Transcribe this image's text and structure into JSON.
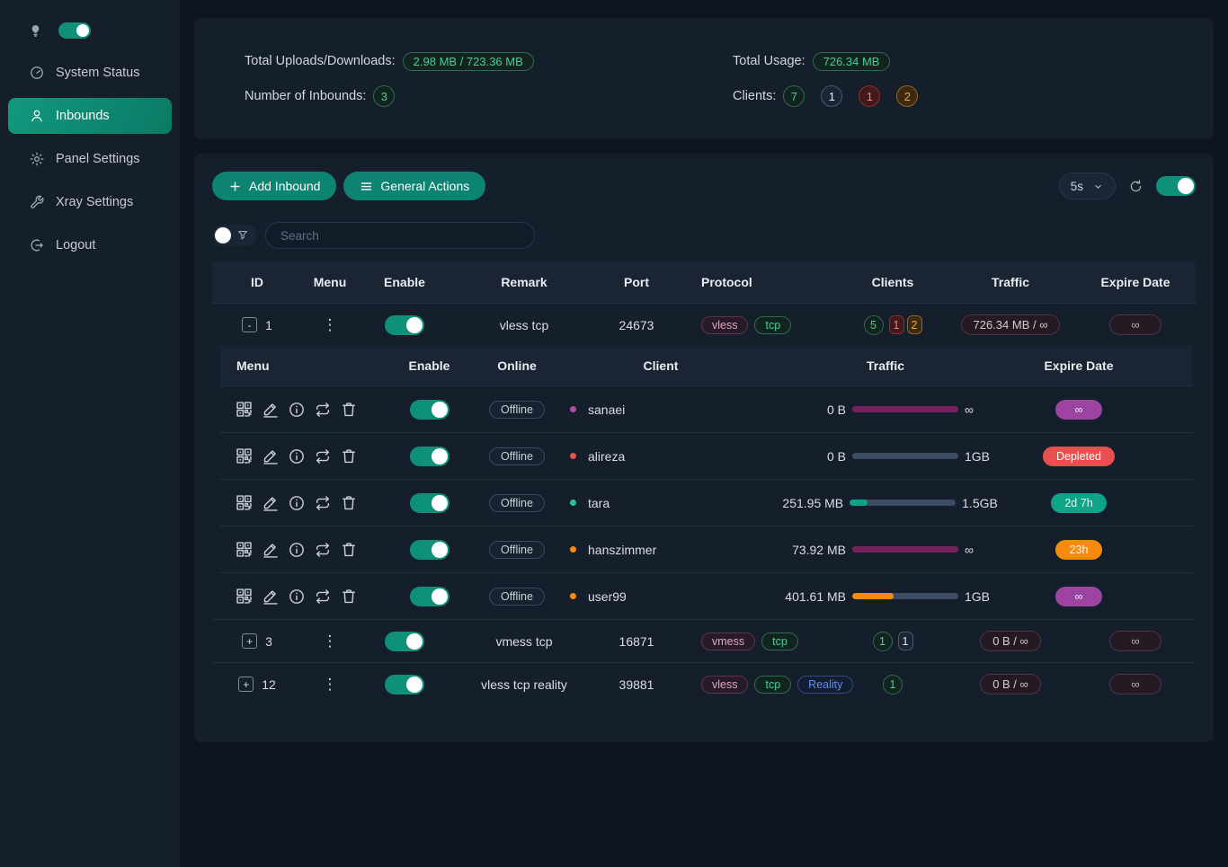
{
  "sidebar": {
    "items": [
      {
        "label": "System Status"
      },
      {
        "label": "Inbounds"
      },
      {
        "label": "Panel Settings"
      },
      {
        "label": "Xray Settings"
      },
      {
        "label": "Logout"
      }
    ]
  },
  "stats": {
    "uploads_label": "Total Uploads/Downloads:",
    "uploads_value": "2.98 MB / 723.36 MB",
    "inbounds_label": "Number of Inbounds:",
    "inbounds_value": "3",
    "usage_label": "Total Usage:",
    "usage_value": "726.34 MB",
    "clients_label": "Clients:",
    "clients": [
      {
        "value": "7",
        "status": "online"
      },
      {
        "value": "1",
        "status": "idle"
      },
      {
        "value": "1",
        "status": "depleted"
      },
      {
        "value": "2",
        "status": "expiring"
      }
    ]
  },
  "toolbar": {
    "add_inbound_label": "Add Inbound",
    "general_actions_label": "General Actions",
    "refresh_interval": "5s",
    "search_placeholder": "Search"
  },
  "table": {
    "headers": {
      "id": "ID",
      "menu": "Menu",
      "enable": "Enable",
      "remark": "Remark",
      "port": "Port",
      "protocol": "Protocol",
      "clients": "Clients",
      "traffic": "Traffic",
      "expire": "Expire Date"
    },
    "rows": [
      {
        "id": "1",
        "expander": "-",
        "enabled": true,
        "remark": "vless tcp",
        "port": "24673",
        "protocols": [
          "vless",
          "tcp"
        ],
        "clients": [
          {
            "value": "5"
          },
          {
            "value": "1"
          },
          {
            "value": "2"
          }
        ],
        "traffic": "726.34 MB / ∞",
        "expire": "∞"
      },
      {
        "id": "3",
        "expander": "+",
        "enabled": true,
        "remark": "vmess tcp",
        "port": "16871",
        "protocols": [
          "vmess",
          "tcp"
        ],
        "clients": [
          {
            "value": "1"
          },
          {
            "value": "1"
          }
        ],
        "traffic": "0 B / ∞",
        "expire": "∞"
      },
      {
        "id": "12",
        "expander": "+",
        "enabled": true,
        "remark": "vless tcp reality",
        "port": "39881",
        "protocols": [
          "vless",
          "tcp",
          "Reality"
        ],
        "clients": [
          {
            "value": "1"
          }
        ],
        "traffic": "0 B / ∞",
        "expire": "∞"
      }
    ]
  },
  "subtable": {
    "headers": {
      "menu": "Menu",
      "enable": "Enable",
      "online": "Online",
      "client": "Client",
      "traffic": "Traffic",
      "expire": "Expire Date"
    },
    "rows": [
      {
        "online": "Offline",
        "client": "sanaei",
        "used": "0 B",
        "limit": "∞",
        "bar_pct": 100,
        "expire": "∞"
      },
      {
        "online": "Offline",
        "client": "alireza",
        "used": "0 B",
        "limit": "1GB",
        "bar_pct": 0,
        "expire": "Depleted"
      },
      {
        "online": "Offline",
        "client": "tara",
        "used": "251.95 MB",
        "limit": "1.5GB",
        "bar_pct": 17,
        "expire": "2d 7h"
      },
      {
        "online": "Offline",
        "client": "hanszimmer",
        "used": "73.92 MB",
        "limit": "∞",
        "bar_pct": 100,
        "expire": "23h"
      },
      {
        "online": "Offline",
        "client": "user99",
        "used": "401.61 MB",
        "limit": "1GB",
        "bar_pct": 39,
        "expire": "∞"
      }
    ]
  },
  "colors": {
    "accent_teal": "#0d8472",
    "toggle_green": "#0e9178",
    "badge_green": "#41cf9f",
    "badge_red": "#ff7b76",
    "badge_orange": "#f2a13c",
    "expire_purple": "#9c44a0",
    "expire_red": "#e8504f",
    "expire_teal": "#0da487",
    "expire_orange": "#f68b0e",
    "bar_magenta": "#75215d",
    "card_bg": "#151f2b",
    "page_bg": "#0d161e",
    "sidebar_bg": "#151f29"
  }
}
